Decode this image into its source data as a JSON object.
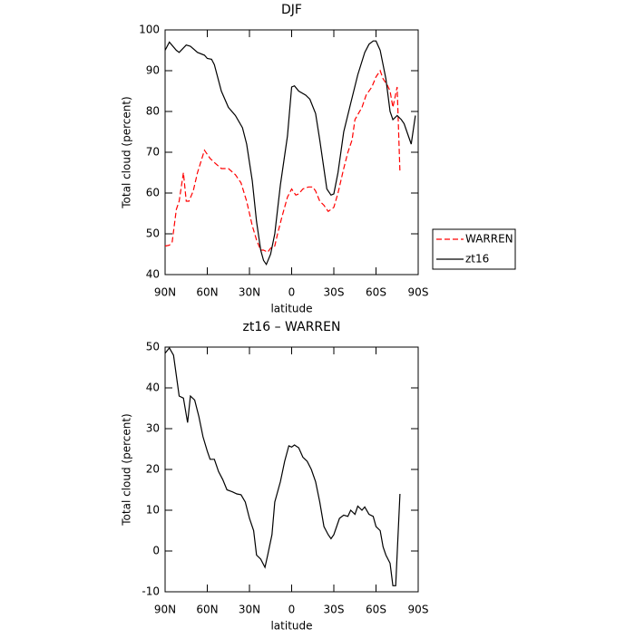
{
  "chart_data": [
    {
      "type": "line",
      "title": "DJF",
      "xlabel": "latitude",
      "ylabel": "Total cloud (percent)",
      "xlim": [
        90,
        -90
      ],
      "ylim": [
        40,
        100
      ],
      "xticks": [
        {
          "value": 90,
          "label": "90N"
        },
        {
          "value": 60,
          "label": "60N"
        },
        {
          "value": 30,
          "label": "30N"
        },
        0,
        {
          "value": -30,
          "label": "30S"
        },
        {
          "value": -60,
          "label": "60S"
        },
        {
          "value": -90,
          "label": "90S"
        }
      ],
      "yticks": [
        40,
        50,
        60,
        70,
        80,
        90,
        100
      ],
      "legend": "right",
      "series": [
        {
          "name": "WARREN",
          "color": "#ff0000",
          "dash": true,
          "x": [
            90,
            87,
            85,
            82,
            80,
            77,
            75,
            73,
            70,
            67,
            62,
            58,
            55,
            50,
            45,
            40,
            36,
            32,
            28,
            25,
            22,
            20,
            17,
            15,
            12,
            10,
            7,
            3,
            0,
            -3,
            -5,
            -8,
            -12,
            -15,
            -17,
            -20,
            -23,
            -26,
            -30,
            -33,
            -37,
            -40,
            -43,
            -45,
            -50,
            -53,
            -57,
            -60,
            -63,
            -65,
            -68,
            -70,
            -72,
            -75,
            -77
          ],
          "values": [
            47,
            47.2,
            48,
            56,
            58,
            65,
            58,
            58,
            60.5,
            65,
            70.5,
            68.5,
            67.5,
            66,
            66,
            64.5,
            62.5,
            58,
            52,
            48.5,
            46,
            46,
            45.5,
            46.5,
            47,
            50,
            54,
            59,
            61,
            59.5,
            59.8,
            61,
            61.5,
            61.5,
            60.5,
            58,
            57,
            55.5,
            56.5,
            60,
            66,
            70,
            73,
            78,
            81,
            84,
            86,
            88.5,
            90,
            88,
            86.5,
            85,
            81,
            86,
            65
          ]
        },
        {
          "name": "zt16",
          "color": "#000000",
          "dash": false,
          "x": [
            90,
            87,
            82,
            80,
            75,
            72,
            67,
            62,
            60,
            57,
            55,
            50,
            45,
            40,
            35,
            32,
            28,
            25,
            22,
            20,
            18,
            15,
            12,
            8,
            3,
            0,
            -2,
            -5,
            -10,
            -13,
            -17,
            -20,
            -25,
            -28,
            -30,
            -33,
            -37,
            -42,
            -47,
            -52,
            -55,
            -58,
            -60,
            -63,
            -67,
            -70,
            -72,
            -75,
            -78,
            -80,
            -82,
            -85,
            -88
          ],
          "values": [
            95,
            97,
            95,
            94.5,
            96.3,
            96,
            94.5,
            93.8,
            93,
            92.8,
            91.5,
            85,
            81,
            79,
            76,
            72,
            63,
            53,
            46,
            43.5,
            42.5,
            45,
            50,
            62,
            74,
            86,
            86.3,
            85,
            84,
            83,
            79.5,
            73,
            61,
            59.5,
            59.8,
            65,
            75,
            82,
            89,
            94.5,
            96.5,
            97.3,
            97.3,
            95,
            88,
            80,
            78,
            79,
            78,
            77,
            75,
            72,
            79
          ]
        }
      ]
    },
    {
      "type": "line",
      "title": "zt16 – WARREN",
      "xlabel": "latitude",
      "ylabel": "Total cloud (percent)",
      "xlim": [
        90,
        -90
      ],
      "ylim": [
        -10,
        50
      ],
      "xticks": [
        {
          "value": 90,
          "label": "90N"
        },
        {
          "value": 60,
          "label": "60N"
        },
        {
          "value": 30,
          "label": "30N"
        },
        0,
        {
          "value": -30,
          "label": "30S"
        },
        {
          "value": -60,
          "label": "60S"
        },
        {
          "value": -90,
          "label": "90S"
        }
      ],
      "yticks": [
        -10,
        0,
        10,
        20,
        30,
        40,
        50
      ],
      "series": [
        {
          "color": "#000000",
          "dash": false,
          "x": [
            90,
            87,
            84,
            80,
            77,
            74,
            72,
            69,
            66,
            63,
            60,
            58,
            55,
            52,
            49,
            46,
            42,
            39,
            36,
            33,
            30,
            27,
            25,
            22,
            19,
            17,
            14,
            12,
            8,
            5,
            2,
            0,
            -2,
            -5,
            -8,
            -11,
            -14,
            -17,
            -20,
            -23,
            -26,
            -28,
            -30,
            -34,
            -37,
            -40,
            -42,
            -45,
            -47,
            -50,
            -52,
            -55,
            -58,
            -60,
            -63,
            -65,
            -67,
            -70,
            -72,
            -74,
            -77
          ],
          "values": [
            48.5,
            49.8,
            48,
            38,
            37.5,
            31.5,
            38,
            37,
            33,
            28,
            24.5,
            22.5,
            22.5,
            19.5,
            17.5,
            15,
            14.5,
            14,
            13.8,
            12,
            8,
            5,
            -1,
            -2,
            -4,
            -1,
            4,
            12,
            17,
            22,
            25.8,
            25.5,
            26,
            25.3,
            23,
            22,
            20,
            17,
            12,
            6,
            4,
            3,
            4,
            8,
            8.8,
            8.5,
            10,
            9,
            11,
            10,
            10.8,
            9,
            8.5,
            6,
            5,
            1,
            -1,
            -3,
            -8.5,
            -8.5,
            14
          ]
        }
      ]
    }
  ]
}
